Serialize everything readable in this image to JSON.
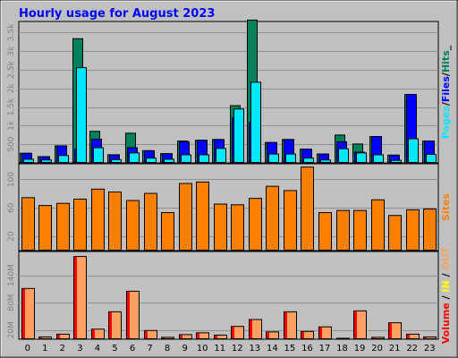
{
  "colors": {
    "frame_bg": "#c0c0c0",
    "plot_bg": "#c0c0c0",
    "grid": "#909090",
    "title": "#0000ff",
    "hits": "#00805c",
    "files": "#0000ff",
    "pages": "#00e8ff",
    "sites": "#ff8000",
    "volume": "#ff0000",
    "in": "#ffff00",
    "out": "#ffa060"
  },
  "chart_data": {
    "type": "bar",
    "title": "Hourly usage for August 2023",
    "categories": [
      "0",
      "1",
      "2",
      "3",
      "4",
      "5",
      "6",
      "7",
      "8",
      "9",
      "10",
      "11",
      "12",
      "13",
      "14",
      "15",
      "16",
      "17",
      "18",
      "19",
      "20",
      "21",
      "22",
      "23"
    ],
    "panels": [
      {
        "id": "hits-panel",
        "legend": [
          {
            "text": "Pages",
            "color_key": "pages"
          },
          {
            "text": "/",
            "color_key": "sep"
          },
          {
            "text": "Files",
            "color_key": "files"
          },
          {
            "text": "/",
            "color_key": "sep"
          },
          {
            "text": "Hits",
            "color_key": "hits"
          },
          {
            "text": "_",
            "color_key": "sep"
          }
        ],
        "yticks": [
          "500",
          "1k",
          "1.5k",
          "2k",
          "2.5k",
          "3k",
          "3.5k"
        ],
        "ytick_values": [
          500,
          1000,
          1500,
          2000,
          2500,
          3000,
          3500
        ],
        "ylim": [
          0,
          3800
        ],
        "series": [
          {
            "name": "Hits",
            "color_key": "hits",
            "values": [
              270,
              180,
              470,
              3350,
              860,
              230,
              810,
              340,
              260,
              600,
              620,
              640,
              1550,
              3850,
              560,
              640,
              380,
              250,
              760,
              520,
              720,
              220,
              1850,
              600
            ]
          },
          {
            "name": "Files",
            "color_key": "files",
            "values": [
              270,
              180,
              470,
              380,
              650,
              230,
              420,
              340,
              260,
              580,
              620,
              640,
              1220,
              1100,
              560,
              640,
              380,
              250,
              580,
              300,
              720,
              220,
              1850,
              600
            ]
          },
          {
            "name": "Pages",
            "color_key": "pages",
            "values": [
              110,
              90,
              210,
              2570,
              420,
              100,
              280,
              140,
              110,
              230,
              230,
              400,
              1460,
              2180,
              250,
              250,
              140,
              90,
              390,
              280,
              230,
              80,
              660,
              240
            ]
          }
        ]
      },
      {
        "id": "sites-panel",
        "legend": [
          {
            "text": "Sites",
            "color_key": "sites"
          }
        ],
        "yticks": [
          "20",
          "60",
          "100"
        ],
        "ytick_values": [
          20,
          60,
          100
        ],
        "ylim": [
          0,
          122
        ],
        "series": [
          {
            "name": "Sites",
            "color_key": "sites",
            "values": [
              75,
              64,
              67,
              73,
              87,
              83,
              71,
              81,
              54,
              95,
              97,
              66,
              65,
              74,
              91,
              85,
              118,
              54,
              57,
              57,
              72,
              50,
              58,
              59
            ]
          }
        ]
      },
      {
        "id": "volume-panel",
        "legend": [
          {
            "text": "Volume",
            "color_key": "volume"
          },
          {
            "text": " / ",
            "color_key": "sep"
          },
          {
            "text": "IN",
            "color_key": "in"
          },
          {
            "text": " / ",
            "color_key": "sep"
          },
          {
            "text": "OUT",
            "color_key": "out"
          }
        ],
        "yticks": [
          "20M",
          "80M",
          "140M"
        ],
        "ytick_values": [
          20,
          80,
          140
        ],
        "ylim": [
          0,
          192
        ],
        "series": [
          {
            "name": "Volume",
            "color_key": "volume",
            "values": [
              112,
              6,
              12,
              182,
              23,
              61,
              106,
              20,
              5,
              11,
              15,
              10,
              29,
              44,
              17,
              61,
              18,
              28,
              3,
              63,
              5,
              37,
              12,
              6
            ]
          }
        ]
      }
    ]
  }
}
